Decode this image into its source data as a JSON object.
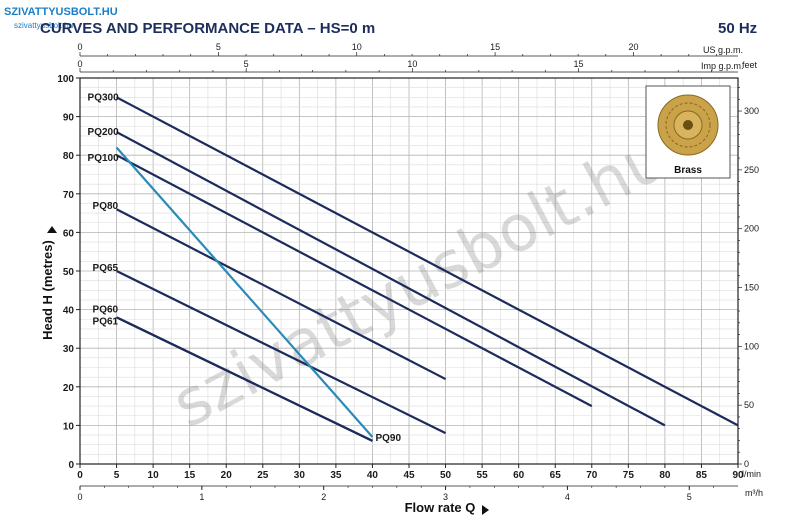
{
  "logo": {
    "text": "SZIVATTYUSBOLT.HU",
    "subtext": "szivattyusbolt.hu"
  },
  "header": {
    "title": "CURVES AND PERFORMANCE DATA  –  HS=0 m",
    "frequency": "50 Hz"
  },
  "watermark": "szivattyusbolt.hu",
  "inset": {
    "label": "Brass"
  },
  "colors": {
    "navy": "#1d2b5c",
    "pq90": "#2a8ab8",
    "grid": "#c8c8c8",
    "title": "#1d2e5c"
  },
  "chart_data": {
    "type": "line",
    "xlabel": "Flow rate Q",
    "ylabel": "Head H (metres)",
    "xlim": [
      0,
      90
    ],
    "ylim": [
      0,
      100
    ],
    "x_unit": "l/min",
    "x_ticks": [
      0,
      5,
      10,
      15,
      20,
      25,
      30,
      35,
      40,
      45,
      50,
      55,
      60,
      65,
      70,
      75,
      80,
      85,
      90
    ],
    "y_ticks": [
      0,
      10,
      20,
      30,
      40,
      50,
      60,
      70,
      80,
      90,
      100
    ],
    "secondary_axes": {
      "m3h": {
        "unit": "m³/h",
        "ticks": [
          0,
          1,
          2,
          3,
          4,
          5
        ]
      },
      "us_gpm": {
        "unit": "US g.p.m.",
        "ticks": [
          0,
          5,
          10,
          15,
          20
        ]
      },
      "imp_gpm": {
        "unit": "Imp g.p.m.",
        "ticks": [
          0,
          5,
          10,
          15
        ]
      },
      "feet": {
        "unit": "feet",
        "ticks": [
          0,
          50,
          100,
          150,
          200,
          250,
          300
        ]
      }
    },
    "series": [
      {
        "name": "PQ300",
        "x": [
          5,
          90
        ],
        "y": [
          95,
          10
        ],
        "color": "#1d2b5c"
      },
      {
        "name": "PQ200",
        "x": [
          5,
          80
        ],
        "y": [
          86,
          10
        ],
        "color": "#1d2b5c"
      },
      {
        "name": "PQ100",
        "x": [
          5,
          70
        ],
        "y": [
          80,
          15
        ],
        "color": "#1d2b5c"
      },
      {
        "name": "PQ80",
        "x": [
          5,
          50
        ],
        "y": [
          66,
          22
        ],
        "color": "#1d2b5c"
      },
      {
        "name": "PQ65",
        "x": [
          5,
          50
        ],
        "y": [
          50,
          8
        ],
        "color": "#1d2b5c"
      },
      {
        "name": "PQ60",
        "x": [
          5,
          40
        ],
        "y": [
          38,
          6
        ],
        "color": "#1d2b5c"
      },
      {
        "name": "PQ61",
        "x": [
          5,
          40
        ],
        "y": [
          38,
          6
        ],
        "color": "#1d2b5c"
      },
      {
        "name": "PQ90",
        "x": [
          5,
          40
        ],
        "y": [
          82,
          7
        ],
        "color": "#2a8ab8"
      }
    ]
  }
}
